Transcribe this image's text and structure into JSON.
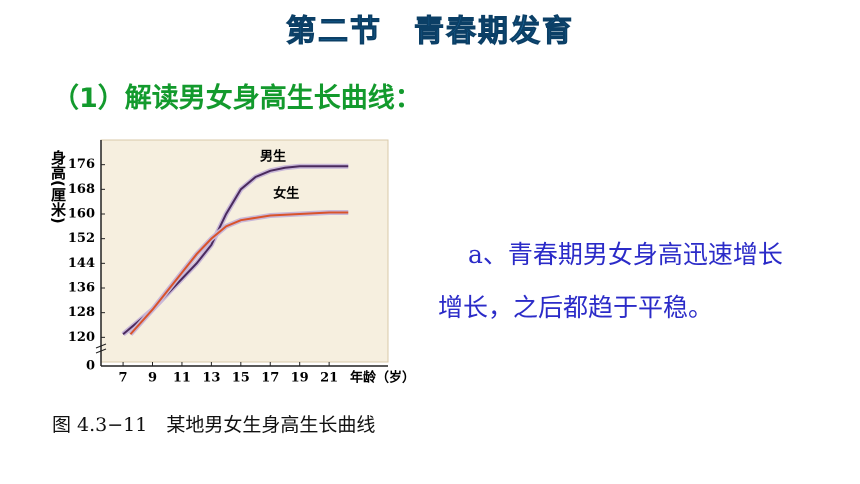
{
  "header": {
    "title": "第二节　青春期发育",
    "subtitle": "（1）解读男女身高生长曲线："
  },
  "body": {
    "lines": [
      "a、青春期男女身高迅速增长",
      "增长，之后都趋于平稳。"
    ]
  },
  "caption": "图 4.3−11　某地男女生身高生长曲线",
  "chart_data": {
    "type": "line",
    "ylabel": "身高(厘米)",
    "xlabel": "年龄（岁）",
    "xlim": [
      5.5,
      25
    ],
    "xticks": [
      7,
      9,
      11,
      13,
      15,
      17,
      19,
      21
    ],
    "ylim": [
      112,
      184
    ],
    "yticks": [
      120,
      128,
      136,
      144,
      152,
      160,
      168,
      176
    ],
    "ybreak": 0,
    "annotations": [
      "男生",
      "女生"
    ],
    "series": [
      {
        "name": "男生",
        "color": "#4a2a5e",
        "x": [
          7,
          8,
          9,
          10,
          11,
          12,
          13,
          14,
          15,
          16,
          17,
          18,
          19,
          20,
          21,
          22.3
        ],
        "values": [
          121,
          125,
          129,
          134,
          139,
          144,
          150,
          160,
          168,
          172,
          174,
          175,
          175.5,
          175.5,
          175.5,
          175.5
        ]
      },
      {
        "name": "女生",
        "color": "#d9532b",
        "x": [
          7.5,
          9,
          10,
          11,
          12,
          13,
          14,
          15,
          17,
          19,
          21,
          22.3
        ],
        "values": [
          121,
          129,
          135,
          141,
          147,
          152,
          156,
          158,
          159.5,
          160,
          160.5,
          160.5
        ]
      }
    ]
  }
}
